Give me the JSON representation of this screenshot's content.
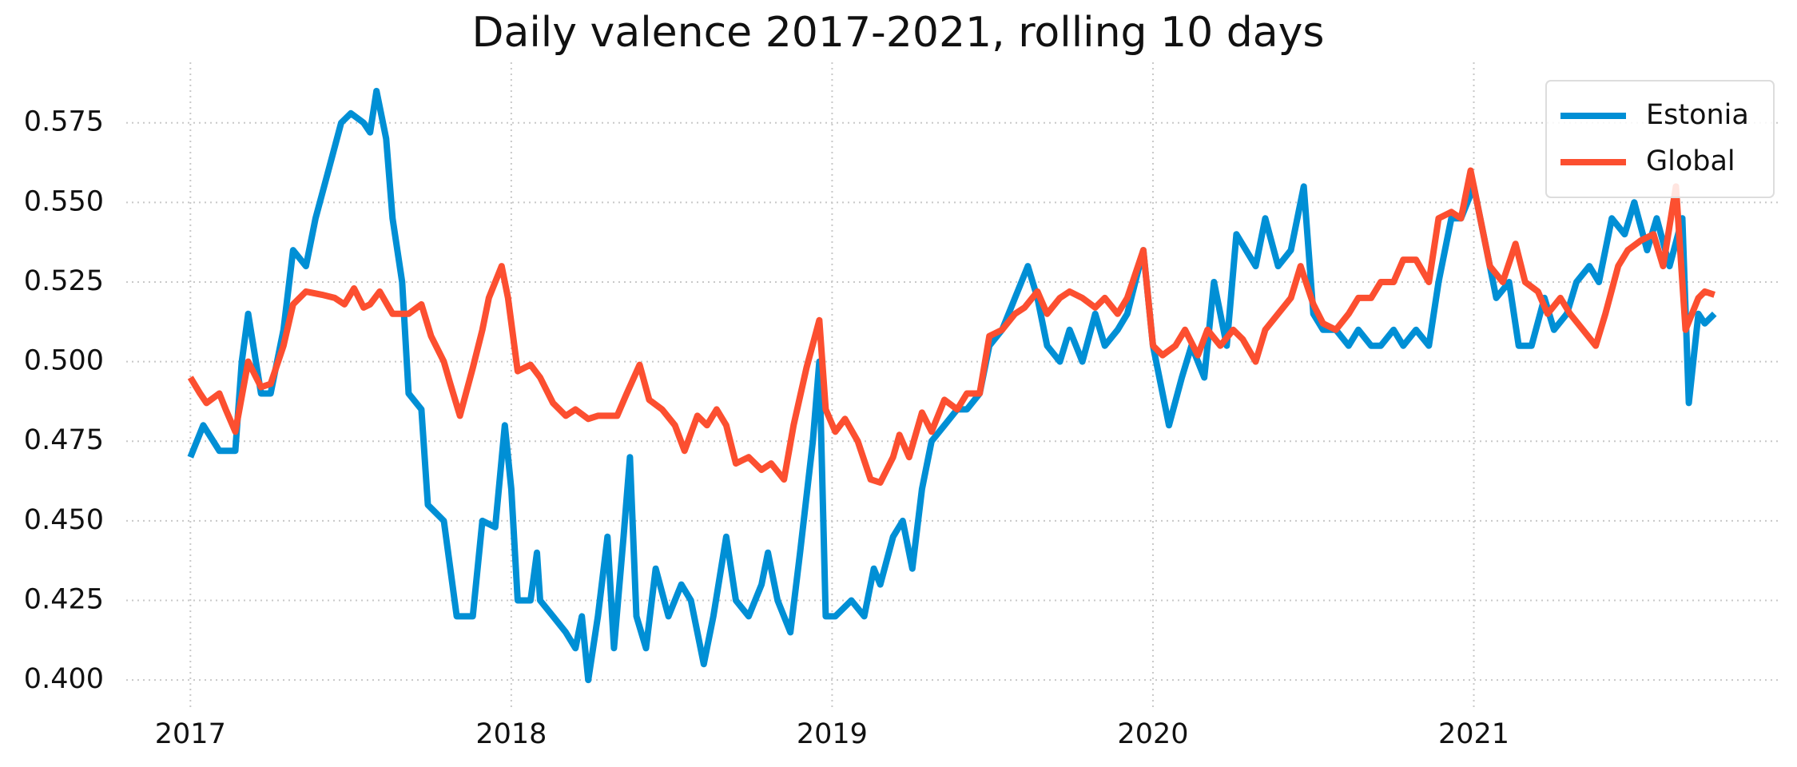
{
  "chart_data": {
    "type": "line",
    "title": "Daily valence 2017-2021, rolling 10 days",
    "xlim": [
      2016.8,
      2021.95
    ],
    "xticks": [
      2017,
      2018,
      2019,
      2020,
      2021
    ],
    "ylim": [
      0.391,
      0.594
    ],
    "yticks": [
      {
        "value": 0.4,
        "label": "0.400"
      },
      0.425,
      {
        "value": 0.45,
        "label": "0.450"
      },
      0.475,
      {
        "value": 0.5,
        "label": "0.500"
      },
      0.525,
      {
        "value": 0.55,
        "label": "0.550"
      },
      0.575
    ],
    "grid": true,
    "legend": "upper right",
    "series": [
      {
        "name": "Estonia",
        "color": "#008fd5",
        "x": [
          2017.0,
          2017.04,
          2017.09,
          2017.14,
          2017.16,
          2017.18,
          2017.22,
          2017.25,
          2017.29,
          2017.32,
          2017.36,
          2017.39,
          2017.43,
          2017.47,
          2017.5,
          2017.54,
          2017.56,
          2017.58,
          2017.61,
          2017.63,
          2017.66,
          2017.68,
          2017.72,
          2017.74,
          2017.79,
          2017.83,
          2017.88,
          2017.91,
          2017.95,
          2017.98,
          2018.0,
          2018.02,
          2018.06,
          2018.08,
          2018.09,
          2018.13,
          2018.17,
          2018.2,
          2018.22,
          2018.24,
          2018.27,
          2018.3,
          2018.32,
          2018.35,
          2018.37,
          2018.39,
          2018.42,
          2018.45,
          2018.49,
          2018.53,
          2018.56,
          2018.6,
          2018.63,
          2018.67,
          2018.7,
          2018.74,
          2018.78,
          2018.8,
          2018.83,
          2018.87,
          2018.9,
          2018.94,
          2018.96,
          2018.98,
          2019.01,
          2019.06,
          2019.1,
          2019.13,
          2019.15,
          2019.19,
          2019.22,
          2019.25,
          2019.28,
          2019.31,
          2019.35,
          2019.39,
          2019.42,
          2019.46,
          2019.49,
          2019.53,
          2019.57,
          2019.61,
          2019.64,
          2019.67,
          2019.71,
          2019.74,
          2019.78,
          2019.82,
          2019.85,
          2019.89,
          2019.92,
          2019.97,
          2020.0,
          2020.02,
          2020.05,
          2020.09,
          2020.12,
          2020.16,
          2020.19,
          2020.23,
          2020.26,
          2020.29,
          2020.32,
          2020.35,
          2020.39,
          2020.43,
          2020.47,
          2020.5,
          2020.53,
          2020.57,
          2020.61,
          2020.64,
          2020.68,
          2020.71,
          2020.75,
          2020.78,
          2020.82,
          2020.86,
          2020.89,
          2020.93,
          2020.96,
          2021.0,
          2021.04,
          2021.07,
          2021.11,
          2021.14,
          2021.18,
          2021.22,
          2021.25,
          2021.29,
          2021.32,
          2021.36,
          2021.39,
          2021.43,
          2021.47,
          2021.5,
          2021.54,
          2021.57,
          2021.61,
          2021.65,
          2021.67,
          2021.7,
          2021.72,
          2021.75
        ],
        "values": [
          0.47,
          0.48,
          0.472,
          0.472,
          0.5,
          0.515,
          0.49,
          0.49,
          0.51,
          0.535,
          0.53,
          0.545,
          0.56,
          0.575,
          0.578,
          0.575,
          0.572,
          0.585,
          0.57,
          0.545,
          0.525,
          0.49,
          0.485,
          0.455,
          0.45,
          0.42,
          0.42,
          0.45,
          0.448,
          0.48,
          0.46,
          0.425,
          0.425,
          0.44,
          0.425,
          0.42,
          0.415,
          0.41,
          0.42,
          0.4,
          0.42,
          0.445,
          0.41,
          0.445,
          0.47,
          0.42,
          0.41,
          0.435,
          0.42,
          0.43,
          0.425,
          0.405,
          0.42,
          0.445,
          0.425,
          0.42,
          0.43,
          0.44,
          0.425,
          0.415,
          0.44,
          0.475,
          0.5,
          0.42,
          0.42,
          0.425,
          0.42,
          0.435,
          0.43,
          0.445,
          0.45,
          0.435,
          0.46,
          0.475,
          0.48,
          0.485,
          0.485,
          0.49,
          0.505,
          0.51,
          0.52,
          0.53,
          0.52,
          0.505,
          0.5,
          0.51,
          0.5,
          0.515,
          0.505,
          0.51,
          0.515,
          0.535,
          0.505,
          0.495,
          0.48,
          0.495,
          0.505,
          0.495,
          0.525,
          0.505,
          0.54,
          0.535,
          0.53,
          0.545,
          0.53,
          0.535,
          0.555,
          0.515,
          0.51,
          0.51,
          0.505,
          0.51,
          0.505,
          0.505,
          0.51,
          0.505,
          0.51,
          0.505,
          0.525,
          0.545,
          0.545,
          0.555,
          0.535,
          0.52,
          0.525,
          0.505,
          0.505,
          0.52,
          0.51,
          0.515,
          0.525,
          0.53,
          0.525,
          0.545,
          0.54,
          0.55,
          0.535,
          0.545,
          0.53,
          0.545,
          0.487,
          0.515,
          0.512,
          0.515
        ]
      },
      {
        "name": "Global",
        "color": "#fc4f30",
        "x": [
          2017.0,
          2017.03,
          2017.05,
          2017.09,
          2017.11,
          2017.14,
          2017.18,
          2017.22,
          2017.25,
          2017.29,
          2017.32,
          2017.36,
          2017.41,
          2017.45,
          2017.48,
          2017.51,
          2017.54,
          2017.56,
          2017.59,
          2017.63,
          2017.68,
          2017.72,
          2017.75,
          2017.79,
          2017.81,
          2017.84,
          2017.88,
          2017.91,
          2017.93,
          2017.97,
          2017.99,
          2018.02,
          2018.06,
          2018.09,
          2018.13,
          2018.17,
          2018.2,
          2018.24,
          2018.27,
          2018.33,
          2018.36,
          2018.4,
          2018.43,
          2018.47,
          2018.51,
          2018.54,
          2018.58,
          2018.61,
          2018.64,
          2018.67,
          2018.7,
          2018.74,
          2018.78,
          2018.81,
          2018.85,
          2018.88,
          2018.92,
          2018.96,
          2018.98,
          2019.01,
          2019.04,
          2019.08,
          2019.12,
          2019.15,
          2019.19,
          2019.21,
          2019.24,
          2019.28,
          2019.31,
          2019.35,
          2019.39,
          2019.42,
          2019.46,
          2019.49,
          2019.53,
          2019.57,
          2019.6,
          2019.64,
          2019.67,
          2019.71,
          2019.74,
          2019.78,
          2019.82,
          2019.85,
          2019.89,
          2019.92,
          2019.97,
          2020.0,
          2020.03,
          2020.07,
          2020.1,
          2020.14,
          2020.17,
          2020.21,
          2020.25,
          2020.28,
          2020.32,
          2020.35,
          2020.39,
          2020.43,
          2020.46,
          2020.5,
          2020.53,
          2020.57,
          2020.61,
          2020.64,
          2020.68,
          2020.71,
          2020.75,
          2020.78,
          2020.82,
          2020.86,
          2020.89,
          2020.93,
          2020.96,
          2020.99,
          2021.02,
          2021.05,
          2021.09,
          2021.13,
          2021.16,
          2021.2,
          2021.23,
          2021.27,
          2021.3,
          2021.34,
          2021.38,
          2021.41,
          2021.45,
          2021.48,
          2021.52,
          2021.56,
          2021.59,
          2021.63,
          2021.66,
          2021.7,
          2021.72,
          2021.75
        ],
        "values": [
          0.495,
          0.49,
          0.487,
          0.49,
          0.485,
          0.478,
          0.5,
          0.492,
          0.493,
          0.505,
          0.518,
          0.522,
          0.521,
          0.52,
          0.518,
          0.523,
          0.517,
          0.518,
          0.522,
          0.515,
          0.515,
          0.518,
          0.508,
          0.5,
          0.493,
          0.483,
          0.498,
          0.51,
          0.52,
          0.53,
          0.52,
          0.497,
          0.499,
          0.495,
          0.487,
          0.483,
          0.485,
          0.482,
          0.483,
          0.483,
          0.49,
          0.499,
          0.488,
          0.485,
          0.48,
          0.472,
          0.483,
          0.48,
          0.485,
          0.48,
          0.468,
          0.47,
          0.466,
          0.468,
          0.463,
          0.48,
          0.498,
          0.513,
          0.485,
          0.478,
          0.482,
          0.475,
          0.463,
          0.462,
          0.47,
          0.477,
          0.47,
          0.484,
          0.478,
          0.488,
          0.485,
          0.49,
          0.49,
          0.508,
          0.51,
          0.515,
          0.517,
          0.522,
          0.515,
          0.52,
          0.522,
          0.52,
          0.517,
          0.52,
          0.515,
          0.52,
          0.535,
          0.505,
          0.502,
          0.505,
          0.51,
          0.502,
          0.51,
          0.505,
          0.51,
          0.507,
          0.5,
          0.51,
          0.515,
          0.52,
          0.53,
          0.518,
          0.512,
          0.51,
          0.515,
          0.52,
          0.52,
          0.525,
          0.525,
          0.532,
          0.532,
          0.525,
          0.545,
          0.547,
          0.545,
          0.56,
          0.545,
          0.53,
          0.525,
          0.537,
          0.525,
          0.522,
          0.515,
          0.52,
          0.515,
          0.51,
          0.505,
          0.515,
          0.53,
          0.535,
          0.538,
          0.54,
          0.53,
          0.555,
          0.51,
          0.52,
          0.522,
          0.521
        ]
      }
    ]
  }
}
